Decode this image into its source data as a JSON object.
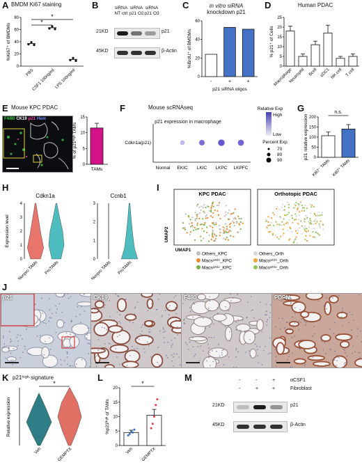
{
  "panels": {
    "A": {
      "label": "A",
      "title": "BMDM Ki67 staining",
      "ylabel": "%Ki67⁺ of BMDMs",
      "sig": [
        "*",
        "*"
      ],
      "chart_data": {
        "type": "scatter",
        "categories": [
          "PBS",
          "CSF1 100ng/ml",
          "LPS 100ng/ml"
        ],
        "values": [
          37,
          63,
          11
        ],
        "ylim": [
          0,
          80
        ],
        "yticks": [
          0,
          20,
          40,
          60,
          80
        ]
      }
    },
    "B": {
      "label": "B",
      "lanes": [
        "siRNA NT ctrl",
        "siRNA p21 O2",
        "siRNA p21 O3"
      ],
      "rows": [
        {
          "size": "21KD",
          "protein": "p21"
        },
        {
          "size": "45KD",
          "protein": "β-Actin"
        }
      ],
      "p21_intensity": [
        0.95,
        0.55,
        0.35
      ]
    },
    "C": {
      "label": "C",
      "title1": "in vitro siRNA",
      "title2": "knockdown p21",
      "ylabel": "%BrdU⁺ of BMDMs",
      "xlabel": "p21 siRNA oligos",
      "signs": [
        "-",
        "+",
        "+"
      ],
      "chart_data": {
        "type": "bar",
        "categories": [
          "-",
          "+",
          "+"
        ],
        "values": [
          24,
          53,
          51
        ],
        "ylim": [
          0,
          60
        ],
        "yticks": [
          0,
          20,
          40,
          60
        ],
        "colors": [
          "#ffffff",
          "#4472c4",
          "#4472c4"
        ]
      }
    },
    "D": {
      "label": "D",
      "title": "Human PDAC",
      "ylabel": "% p21⁺ of Cells",
      "chart_data": {
        "type": "bar",
        "categories": [
          "Macrophage",
          "Neutrophil",
          "Bcell",
          "cDC1",
          "NK cell",
          "T cell"
        ],
        "values": [
          18,
          5,
          11,
          17,
          4,
          5
        ],
        "errors": [
          2.5,
          1.2,
          1.8,
          4,
          1,
          1.3
        ],
        "ylim": [
          0,
          25
        ],
        "yticks": [
          0,
          5,
          10,
          15,
          20,
          25
        ]
      }
    },
    "E": {
      "label": "E",
      "title": "Mouse KPC PDAC",
      "legend": [
        {
          "text": "F4/80",
          "color": "#3cd14a"
        },
        {
          "text": "CK19",
          "color": "#ffffff"
        },
        {
          "text": "p21",
          "color": "#ff3fb4"
        },
        {
          "text": "Hem",
          "color": "#6e8cff"
        }
      ],
      "ylabel": "% of p21ʰⁱᵍʰ TAMs",
      "chart_data": {
        "type": "bar",
        "categories": [
          "TAMs"
        ],
        "values": [
          11.5
        ],
        "errors": [
          1.5
        ],
        "ylim": [
          0,
          15
        ],
        "yticks": [
          0,
          5,
          10,
          15
        ]
      }
    },
    "F": {
      "label": "F",
      "title": "Mouse scRNAseq",
      "subtitle": "p21 expression in macrophage",
      "gene": "Cdkn1a(p21)",
      "legend_title": "Relative Exp",
      "legend_high": "High",
      "legend_low": "Low",
      "size_title": "Percent Exp",
      "size_vals": [
        "70",
        "80",
        "90"
      ],
      "chart_data": {
        "type": "scatter",
        "categories": [
          "Normal",
          "EKIC",
          "LKIC",
          "LKPC",
          "LKPFC"
        ],
        "expression": [
          null,
          0.2,
          0.65,
          0.8,
          0.7
        ],
        "percent": [
          null,
          78,
          82,
          86,
          84
        ]
      }
    },
    "G": {
      "label": "G",
      "sig": "n.s.",
      "ylabel": "p21 relative expression",
      "chart_data": {
        "type": "bar",
        "categories": [
          "Ki67⁻ TAMs",
          "Ki67⁺ TAMs"
        ],
        "values": [
          107,
          140
        ],
        "errors": [
          18,
          22
        ],
        "ylim": [
          0,
          200
        ],
        "yticks": [
          0,
          50,
          100,
          150,
          200
        ],
        "colors": [
          "#ffffff",
          "#4472c4"
        ]
      }
    },
    "H": {
      "label": "H",
      "violins": [
        {
          "gene": "Cdkn1a",
          "groups": [
            "Nonpro TAMs",
            "ProTAMs"
          ],
          "colors": [
            "#e8756b",
            "#4dbdbf"
          ],
          "yticks": [
            "0",
            "1",
            "2",
            "3",
            "4"
          ]
        },
        {
          "gene": "Ccnb1",
          "groups": [
            "Nonpro TAMs",
            "ProTAMs"
          ],
          "colors": [
            "#e8756b",
            "#4dbdbf"
          ],
          "yticks": [
            "0",
            "1",
            "2",
            "3"
          ]
        }
      ],
      "ylabel": "Expression level"
    },
    "I": {
      "label": "I",
      "titles": [
        "KPC PDAC",
        "Orthotopic PDAC"
      ],
      "ylabel": "UMAP2",
      "xlabel": "UMAP1",
      "legend": [
        {
          "text": "Others_KPC",
          "color": "#bdbdbd"
        },
        {
          "text": "Others_Orth",
          "color": "#d6d6d6"
        },
        {
          "text": "Macsᵖ²¹ʰⁱ_KPC",
          "color": "#e88a2e"
        },
        {
          "text": "Macsᵖ²¹ʰⁱ_Orth",
          "color": "#f0a33a"
        },
        {
          "text": "Macsᵖ²¹ˡᵒ_KPC",
          "color": "#7ab04a"
        },
        {
          "text": "Macsᵖ²¹ˡᵒ_Orth",
          "color": "#95c45c"
        }
      ]
    },
    "J": {
      "label": "J",
      "stains": [
        "p21",
        "CK19",
        "F480",
        "PDPN"
      ]
    },
    "K": {
      "label": "K",
      "title": "p21ʰⁱᵍʰ signature",
      "ylabel": "Relative expression",
      "sig": "*",
      "groups": [
        "Veh",
        "GEMPTX"
      ],
      "colors": [
        "#2f7d86",
        "#e07064"
      ]
    },
    "L": {
      "label": "L",
      "ylabel": "%p21ʰⁱᵍʰ of TAMs",
      "sig": "*",
      "chart_data": {
        "type": "bar",
        "categories": [
          "Veh",
          "GEMPTX"
        ],
        "values": [
          4.5,
          10.5
        ],
        "errors": [
          0.8,
          2
        ],
        "ylim": [
          0,
          20
        ],
        "yticks": [
          0,
          5,
          10,
          15,
          20
        ],
        "points": [
          [
            3.5,
            4,
            5,
            4.5,
            5.5
          ],
          [
            6,
            7.5,
            10,
            14,
            16
          ]
        ]
      }
    },
    "M": {
      "label": "M",
      "cond_labels": [
        "αCSF1",
        "Fibroblast"
      ],
      "cond_signs": [
        [
          "-",
          "-",
          "+"
        ],
        [
          "-",
          "+",
          "+"
        ]
      ],
      "rows": [
        {
          "size": "21KD",
          "protein": "p21"
        },
        {
          "size": "45KD",
          "protein": "β-Actin"
        }
      ],
      "p21_intensity": [
        0.2,
        0.95,
        0.4
      ]
    }
  }
}
